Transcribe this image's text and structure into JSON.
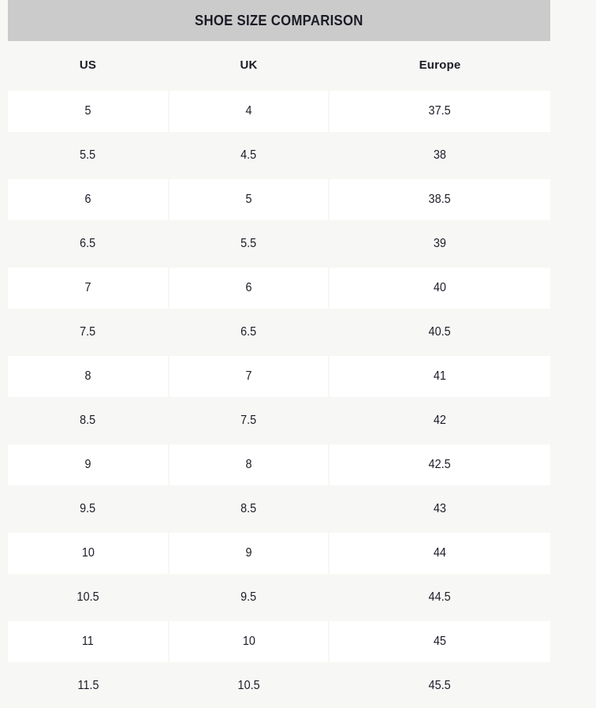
{
  "title": "SHOE SIZE COMPARISON",
  "table": {
    "columns": [
      "US",
      "UK",
      "Europe"
    ],
    "rows": [
      [
        "5",
        "4",
        "37.5"
      ],
      [
        "5.5",
        "4.5",
        "38"
      ],
      [
        "6",
        "5",
        "38.5"
      ],
      [
        "6.5",
        "5.5",
        "39"
      ],
      [
        "7",
        "6",
        "40"
      ],
      [
        "7.5",
        "6.5",
        "40.5"
      ],
      [
        "8",
        "7",
        "41"
      ],
      [
        "8.5",
        "7.5",
        "42"
      ],
      [
        "9",
        "8",
        "42.5"
      ],
      [
        "9.5",
        "8.5",
        "43"
      ],
      [
        "10",
        "9",
        "44"
      ],
      [
        "10.5",
        "9.5",
        "44.5"
      ],
      [
        "11",
        "10",
        "45"
      ],
      [
        "11.5",
        "10.5",
        "45.5"
      ]
    ]
  },
  "colors": {
    "page_bg": "#f7f7f5",
    "banner_bg": "#cbcbcb",
    "row_band_bg": "#ffffff",
    "text": "#1b1b26"
  }
}
